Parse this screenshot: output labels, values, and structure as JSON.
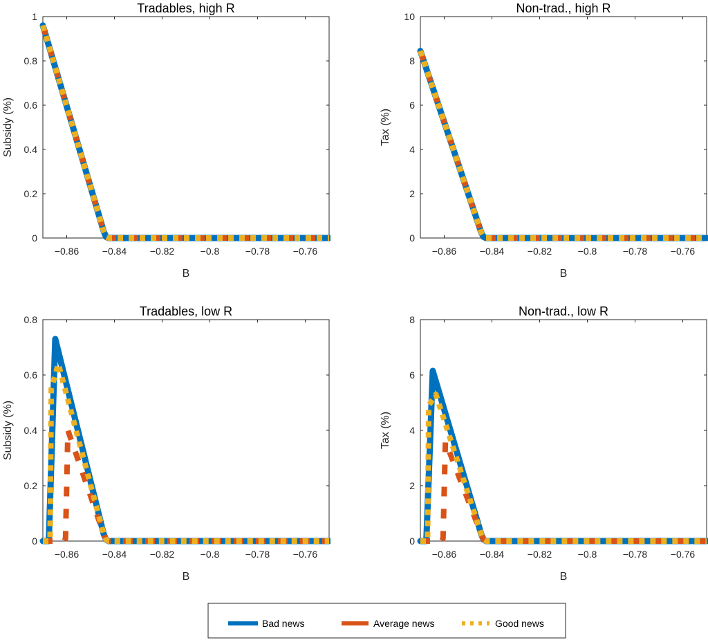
{
  "chart_data": [
    {
      "type": "line",
      "title": "Tradables, high R",
      "xlabel": "B",
      "ylabel": "Subsidy (%)",
      "xlim": [
        -0.87,
        -0.75
      ],
      "ylim": [
        0,
        1
      ],
      "xticks": [
        -0.86,
        -0.84,
        -0.82,
        -0.8,
        -0.78,
        -0.76
      ],
      "xtick_labels": [
        "−0.86",
        "−0.84",
        "−0.82",
        "−0.8",
        "−0.78",
        "−0.76"
      ],
      "yticks": [
        0,
        0.2,
        0.4,
        0.6,
        0.8,
        1
      ],
      "ytick_labels": [
        "0",
        "0.2",
        "0.4",
        "0.6",
        "0.8",
        "1"
      ],
      "grid": false,
      "series": [
        {
          "name": "Bad news",
          "x": [
            -0.87,
            -0.8445,
            -0.8435,
            -0.8425,
            -0.75
          ],
          "y": [
            0.96,
            0.03,
            0.005,
            0,
            0
          ]
        },
        {
          "name": "Average news",
          "x": [
            -0.87,
            -0.8445,
            -0.8435,
            -0.8425,
            -0.75
          ],
          "y": [
            0.96,
            0.03,
            0.005,
            0,
            0
          ]
        },
        {
          "name": "Good news",
          "x": [
            -0.87,
            -0.8445,
            -0.8435,
            -0.8425,
            -0.75
          ],
          "y": [
            0.96,
            0.03,
            0.005,
            0,
            0
          ]
        }
      ]
    },
    {
      "type": "line",
      "title": "Non-trad., high R",
      "xlabel": "B",
      "ylabel": "Tax (%)",
      "xlim": [
        -0.87,
        -0.75
      ],
      "ylim": [
        0,
        10
      ],
      "xticks": [
        -0.86,
        -0.84,
        -0.82,
        -0.8,
        -0.78,
        -0.76
      ],
      "xtick_labels": [
        "−0.86",
        "−0.84",
        "−0.82",
        "−0.8",
        "−0.78",
        "−0.76"
      ],
      "yticks": [
        0,
        2,
        4,
        6,
        8,
        10
      ],
      "ytick_labels": [
        "0",
        "2",
        "4",
        "6",
        "8",
        "10"
      ],
      "grid": false,
      "series": [
        {
          "name": "Bad news",
          "x": [
            -0.87,
            -0.8445,
            -0.8435,
            -0.8425,
            -0.75
          ],
          "y": [
            8.45,
            0.25,
            0.05,
            0,
            0
          ]
        },
        {
          "name": "Average news",
          "x": [
            -0.87,
            -0.8445,
            -0.8435,
            -0.8425,
            -0.75
          ],
          "y": [
            8.45,
            0.25,
            0.05,
            0,
            0
          ]
        },
        {
          "name": "Good news",
          "x": [
            -0.87,
            -0.8445,
            -0.8435,
            -0.8425,
            -0.75
          ],
          "y": [
            8.45,
            0.25,
            0.05,
            0,
            0
          ]
        }
      ]
    },
    {
      "type": "line",
      "title": "Tradables, low R",
      "xlabel": "B",
      "ylabel": "Subsidy (%)",
      "xlim": [
        -0.87,
        -0.75
      ],
      "ylim": [
        0,
        0.8
      ],
      "xticks": [
        -0.86,
        -0.84,
        -0.82,
        -0.8,
        -0.78,
        -0.76
      ],
      "xtick_labels": [
        "−0.86",
        "−0.84",
        "−0.82",
        "−0.8",
        "−0.78",
        "−0.76"
      ],
      "yticks": [
        0,
        0.2,
        0.4,
        0.6,
        0.8
      ],
      "ytick_labels": [
        "0",
        "0.2",
        "0.4",
        "0.6",
        "0.8"
      ],
      "grid": false,
      "series": [
        {
          "name": "Bad news",
          "x": [
            -0.87,
            -0.8675,
            -0.8648,
            -0.8445,
            -0.8435,
            -0.8425,
            -0.75
          ],
          "y": [
            0,
            0,
            0.73,
            0.025,
            0.005,
            0,
            0
          ]
        },
        {
          "name": "Average news",
          "x": [
            -0.87,
            -0.861,
            -0.8605,
            -0.8595,
            -0.8445,
            -0.8435,
            -0.8425,
            -0.75
          ],
          "y": [
            0,
            0,
            0.01,
            0.4,
            0.025,
            0.005,
            0,
            0
          ]
        },
        {
          "name": "Good news",
          "x": [
            -0.87,
            -0.867,
            -0.8665,
            -0.8635,
            -0.8445,
            -0.8435,
            -0.8425,
            -0.75
          ],
          "y": [
            0,
            0,
            0.55,
            0.64,
            0.025,
            0.005,
            0,
            0
          ]
        }
      ]
    },
    {
      "type": "line",
      "title": "Non-trad., low R",
      "xlabel": "B",
      "ylabel": "Tax (%)",
      "xlim": [
        -0.87,
        -0.75
      ],
      "ylim": [
        0,
        8
      ],
      "xticks": [
        -0.86,
        -0.84,
        -0.82,
        -0.8,
        -0.78,
        -0.76
      ],
      "xtick_labels": [
        "−0.86",
        "−0.84",
        "−0.82",
        "−0.8",
        "−0.78",
        "−0.76"
      ],
      "yticks": [
        0,
        2,
        4,
        6,
        8
      ],
      "ytick_labels": [
        "0",
        "2",
        "4",
        "6",
        "8"
      ],
      "grid": false,
      "series": [
        {
          "name": "Bad news",
          "x": [
            -0.87,
            -0.8675,
            -0.8648,
            -0.8445,
            -0.8435,
            -0.8425,
            -0.75
          ],
          "y": [
            0,
            0,
            6.15,
            0.25,
            0.05,
            0,
            0
          ]
        },
        {
          "name": "Average news",
          "x": [
            -0.87,
            -0.861,
            -0.8605,
            -0.8595,
            -0.8445,
            -0.8435,
            -0.8425,
            -0.75
          ],
          "y": [
            0,
            0,
            0.1,
            3.6,
            0.25,
            0.05,
            0,
            0
          ]
        },
        {
          "name": "Good news",
          "x": [
            -0.87,
            -0.867,
            -0.8665,
            -0.8635,
            -0.8445,
            -0.8435,
            -0.8425,
            -0.75
          ],
          "y": [
            0,
            0,
            4.9,
            5.3,
            0.25,
            0.05,
            0,
            0
          ]
        }
      ]
    }
  ],
  "legend": {
    "placement": "bottom-center",
    "items": [
      {
        "label": "Bad news",
        "color": "#0072BD",
        "style": "solid"
      },
      {
        "label": "Average news",
        "color": "#D95319",
        "style": "dashed"
      },
      {
        "label": "Good news",
        "color": "#EDB120",
        "style": "dotted"
      }
    ]
  },
  "colors": {
    "bad_news": "#0072BD",
    "average_news": "#D95319",
    "good_news": "#EDB120",
    "axis": "#262626"
  }
}
